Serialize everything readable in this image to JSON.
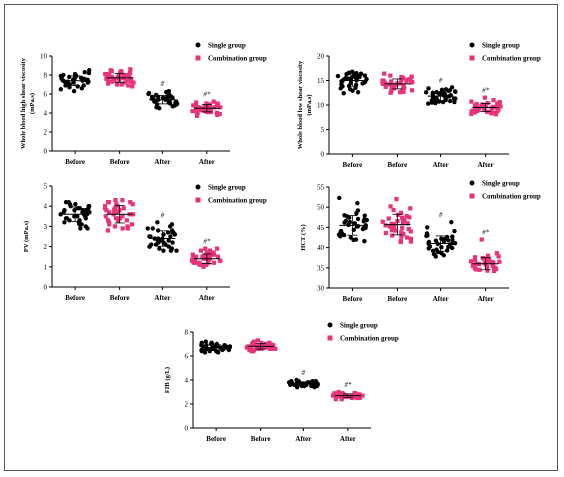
{
  "legend": {
    "single": "Single group",
    "combination": "Combination group"
  },
  "colors": {
    "single": "#000000",
    "combination": "#e8337a"
  },
  "markers": {
    "single": "circle",
    "combination": "square"
  },
  "chart_data": [
    {
      "type": "scatter",
      "ylabel": "Whole blood high shear viscosity (mPa.s)",
      "ylim": [
        0,
        10
      ],
      "yticks": [
        0,
        2,
        4,
        6,
        8,
        10
      ],
      "categories": [
        "Before",
        "Before",
        "After",
        "After"
      ],
      "groups": [
        "single",
        "combination",
        "single",
        "combination"
      ],
      "annotations": [
        "",
        "",
        "#",
        "#*"
      ],
      "series": [
        {
          "name": "Single group",
          "values": [
            7.4,
            7.7,
            7.1,
            7.9,
            6.9,
            7.6,
            8.2,
            7.3,
            7.0,
            7.8,
            6.6,
            7.5,
            8.5,
            7.2,
            6.8,
            7.7,
            7.4,
            8.0,
            6.5,
            7.3,
            7.6,
            7.1,
            8.3,
            6.9,
            7.5,
            7.8,
            7.2,
            6.7,
            8.1,
            7.4,
            7.0,
            7.6,
            6.3,
            7.9,
            7.3,
            7.5
          ]
        },
        {
          "name": "Combination group",
          "values": [
            7.8,
            7.5,
            8.1,
            7.2,
            7.9,
            8.4,
            7.6,
            7.0,
            8.0,
            7.4,
            8.6,
            7.7,
            7.3,
            8.2,
            6.8,
            7.9,
            7.5,
            8.3,
            7.1,
            7.8,
            8.5,
            7.6,
            7.2,
            8.0,
            7.4,
            6.9,
            8.1,
            7.7,
            7.3,
            7.9,
            8.4,
            7.6,
            7.0,
            7.8,
            7.5,
            8.2
          ]
        },
        {
          "name": "Single group",
          "values": [
            5.4,
            5.7,
            5.1,
            5.9,
            5.3,
            6.1,
            4.9,
            5.6,
            5.2,
            5.8,
            4.6,
            5.5,
            6.2,
            5.0,
            5.4,
            5.7,
            4.8,
            5.9,
            5.3,
            5.6,
            4.5,
            5.2,
            6.0,
            5.5,
            5.1,
            5.8,
            4.7,
            5.4,
            5.6,
            5.0,
            6.3,
            5.3,
            5.7,
            4.9,
            5.5,
            5.2
          ]
        },
        {
          "name": "Combination group",
          "values": [
            4.6,
            4.3,
            4.9,
            4.1,
            4.7,
            5.0,
            4.4,
            3.8,
            4.8,
            4.2,
            5.1,
            4.5,
            3.9,
            4.7,
            4.4,
            4.0,
            4.9,
            4.3,
            4.6,
            3.7,
            4.8,
            4.5,
            4.2,
            5.0,
            4.1,
            4.6,
            3.9,
            4.4,
            4.7,
            4.3,
            5.2,
            4.5,
            4.0,
            4.8,
            4.2,
            4.6
          ]
        }
      ],
      "means": [
        7.4,
        7.7,
        5.4,
        4.5
      ]
    },
    {
      "type": "scatter",
      "ylabel": "Whole blood low shear viscosity (mPa.s)",
      "ylim": [
        0,
        20
      ],
      "yticks": [
        0,
        5,
        10,
        15,
        20
      ],
      "categories": [
        "Before",
        "Before",
        "After",
        "After"
      ],
      "groups": [
        "single",
        "combination",
        "single",
        "combination"
      ],
      "annotations": [
        "",
        "",
        "#",
        "#*"
      ],
      "series": [
        {
          "name": "Single group",
          "values": [
            15.2,
            14.6,
            16.1,
            13.8,
            15.7,
            16.5,
            14.2,
            12.9,
            15.9,
            14.8,
            16.8,
            15.3,
            13.5,
            15.0,
            16.3,
            14.4,
            15.6,
            13.2,
            16.0,
            14.9,
            15.4,
            12.6,
            16.6,
            14.1,
            15.8,
            15.1,
            13.9,
            16.2,
            14.7,
            15.5,
            13.4,
            16.4,
            14.5,
            15.2,
            12.4,
            15.8
          ]
        },
        {
          "name": "Combination group",
          "values": [
            14.3,
            13.8,
            15.0,
            12.9,
            14.6,
            15.5,
            13.4,
            14.9,
            12.6,
            14.1,
            16.4,
            13.7,
            14.8,
            13.1,
            15.2,
            14.4,
            12.8,
            15.7,
            13.9,
            14.5,
            15.1,
            13.3,
            14.7,
            12.5,
            16.0,
            14.0,
            13.6,
            15.3,
            14.2,
            13.0,
            15.8,
            14.6,
            13.5,
            14.9,
            12.7,
            14.4
          ]
        },
        {
          "name": "Single group",
          "values": [
            11.8,
            12.6,
            10.9,
            13.4,
            11.3,
            12.1,
            10.4,
            13.1,
            11.6,
            12.9,
            10.7,
            12.3,
            11.0,
            13.6,
            11.9,
            10.5,
            12.7,
            11.4,
            12.2,
            10.8,
            13.2,
            11.1,
            12.5,
            10.6,
            11.7,
            12.8,
            11.2,
            10.3,
            12.4,
            11.5,
            13.0,
            10.9,
            12.0,
            11.3,
            10.6,
            12.6
          ]
        },
        {
          "name": "Combination group",
          "values": [
            9.5,
            8.9,
            10.2,
            8.4,
            9.8,
            10.6,
            9.1,
            8.2,
            10.0,
            9.4,
            11.0,
            8.7,
            9.6,
            10.4,
            8.5,
            9.9,
            9.2,
            10.7,
            8.8,
            9.3,
            10.1,
            8.3,
            9.7,
            10.5,
            9.0,
            8.6,
            11.5,
            9.4,
            10.3,
            8.9,
            9.6,
            8.1,
            10.0,
            9.2,
            9.8,
            8.7
          ]
        }
      ],
      "means": [
        15.0,
        14.3,
        11.8,
        9.5
      ]
    },
    {
      "type": "scatter",
      "ylabel": "PV (mPa.s)",
      "ylim": [
        0,
        5
      ],
      "yticks": [
        0,
        1,
        2,
        3,
        4,
        5
      ],
      "categories": [
        "Before",
        "Before",
        "After",
        "After"
      ],
      "groups": [
        "single",
        "combination",
        "single",
        "combination"
      ],
      "annotations": [
        "",
        "",
        "#",
        "#*"
      ],
      "series": [
        {
          "name": "Single group",
          "values": [
            3.7,
            3.4,
            4.0,
            3.2,
            3.8,
            4.2,
            3.5,
            2.9,
            3.9,
            3.6,
            4.1,
            3.3,
            3.7,
            3.0,
            4.0,
            3.5,
            3.8,
            3.1,
            4.2,
            3.6,
            3.4,
            3.9,
            3.2,
            3.7,
            4.1,
            3.5,
            2.9,
            3.8,
            3.6,
            4.0,
            3.3,
            3.7,
            3.9,
            3.4,
            3.1,
            3.8
          ]
        },
        {
          "name": "Combination group",
          "values": [
            3.6,
            4.0,
            3.3,
            4.2,
            3.1,
            3.8,
            4.3,
            3.5,
            2.8,
            3.9,
            3.4,
            4.1,
            3.0,
            3.7,
            4.2,
            3.3,
            3.9,
            2.9,
            3.6,
            4.0,
            3.2,
            3.8,
            4.3,
            3.5,
            3.1,
            3.7,
            4.1,
            3.4,
            2.9,
            3.8,
            3.6,
            4.2,
            3.3,
            3.9,
            3.0,
            3.7
          ]
        },
        {
          "name": "Single group",
          "values": [
            2.4,
            2.0,
            2.8,
            1.8,
            2.6,
            3.1,
            2.2,
            1.9,
            2.7,
            2.3,
            3.0,
            2.1,
            2.5,
            1.8,
            2.9,
            2.4,
            2.0,
            2.6,
            2.2,
            3.2,
            2.5,
            1.9,
            2.7,
            2.3,
            2.1,
            2.8,
            2.4,
            2.0,
            2.6,
            2.2,
            2.9,
            2.5,
            1.8,
            2.3,
            2.7,
            2.1
          ]
        },
        {
          "name": "Combination group",
          "values": [
            1.4,
            1.6,
            1.2,
            1.8,
            1.3,
            1.5,
            1.1,
            1.7,
            1.4,
            1.9,
            1.2,
            1.5,
            1.3,
            1.6,
            1.0,
            1.4,
            1.7,
            1.2,
            1.5,
            1.8,
            1.3,
            1.4,
            1.1,
            1.6,
            1.5,
            1.2,
            1.9,
            1.3,
            1.4,
            1.6,
            1.2,
            1.5,
            1.7,
            1.3,
            1.4,
            1.1
          ]
        }
      ],
      "means": [
        3.6,
        3.6,
        2.4,
        1.4
      ]
    },
    {
      "type": "scatter",
      "ylabel": "HCT (%)",
      "ylim": [
        30,
        55
      ],
      "yticks": [
        30,
        35,
        40,
        45,
        50,
        55
      ],
      "categories": [
        "Before",
        "Before",
        "After",
        "After"
      ],
      "groups": [
        "single",
        "combination",
        "single",
        "combination"
      ],
      "annotations": [
        "",
        "",
        "#",
        "#*"
      ],
      "series": [
        {
          "name": "Single group",
          "values": [
            45.2,
            43.8,
            47.1,
            42.5,
            46.3,
            48.5,
            44.1,
            41.6,
            46.8,
            45.6,
            52.3,
            43.2,
            47.7,
            44.7,
            42.0,
            46.0,
            49.2,
            45.0,
            43.5,
            47.4,
            44.4,
            41.9,
            46.6,
            45.3,
            51.0,
            43.9,
            47.0,
            44.9,
            42.8,
            46.2,
            48.0,
            45.5,
            43.1,
            47.9,
            44.6,
            46.5
          ]
        },
        {
          "name": "Combination group",
          "values": [
            45.8,
            44.2,
            47.5,
            42.8,
            46.6,
            49.3,
            43.6,
            41.4,
            46.9,
            45.1,
            52.0,
            44.6,
            48.1,
            43.0,
            47.2,
            45.5,
            42.2,
            46.3,
            50.2,
            44.9,
            47.8,
            43.4,
            45.9,
            41.7,
            48.6,
            44.3,
            46.7,
            42.5,
            47.4,
            45.2,
            43.8,
            46.0,
            49.7,
            44.0,
            41.5,
            46.4
          ]
        },
        {
          "name": "Single group",
          "values": [
            41.2,
            40.1,
            42.6,
            39.3,
            41.8,
            43.5,
            40.6,
            38.4,
            42.1,
            41.0,
            46.3,
            39.8,
            42.9,
            40.4,
            38.1,
            41.5,
            44.1,
            40.8,
            39.5,
            42.4,
            41.1,
            37.8,
            42.7,
            40.2,
            45.0,
            39.9,
            41.7,
            38.6,
            42.2,
            40.9,
            39.2,
            41.4,
            43.0,
            40.3,
            38.9,
            41.9
          ]
        },
        {
          "name": "Combination group",
          "values": [
            36.2,
            35.4,
            37.1,
            34.8,
            36.6,
            37.8,
            35.9,
            34.2,
            36.9,
            35.6,
            42.0,
            36.4,
            35.1,
            37.4,
            34.5,
            36.0,
            38.6,
            35.7,
            36.8,
            34.9,
            37.0,
            35.3,
            36.5,
            34.3,
            37.6,
            35.8,
            36.1,
            34.7,
            37.3,
            35.5,
            36.7,
            35.0,
            38.0,
            36.3,
            34.6,
            35.9
          ]
        }
      ],
      "means": [
        45.5,
        45.7,
        41.0,
        36.0
      ]
    },
    {
      "type": "scatter",
      "ylabel": "FIB (g/L)",
      "ylim": [
        0,
        8
      ],
      "yticks": [
        0,
        2,
        4,
        6,
        8
      ],
      "categories": [
        "Before",
        "Before",
        "After",
        "After"
      ],
      "groups": [
        "single",
        "combination",
        "single",
        "combination"
      ],
      "annotations": [
        "",
        "",
        "#",
        "#*"
      ],
      "series": [
        {
          "name": "Single group",
          "values": [
            6.7,
            6.5,
            6.9,
            6.4,
            6.8,
            7.1,
            6.6,
            6.3,
            7.0,
            6.7,
            7.2,
            6.5,
            6.8,
            6.6,
            6.9,
            6.4,
            6.7,
            7.0,
            6.5,
            6.8,
            6.6,
            6.9,
            6.3,
            7.1,
            6.7,
            6.5,
            6.8,
            6.6,
            7.0,
            6.4,
            6.7,
            6.9,
            6.5,
            6.8,
            6.6,
            6.7
          ]
        },
        {
          "name": "Combination group",
          "values": [
            6.8,
            6.6,
            7.0,
            6.5,
            6.9,
            7.2,
            6.7,
            6.4,
            7.1,
            6.8,
            7.3,
            6.6,
            6.9,
            6.7,
            7.0,
            6.5,
            6.8,
            7.1,
            6.6,
            6.9,
            6.7,
            7.0,
            6.4,
            7.2,
            6.8,
            6.6,
            6.9,
            6.7,
            7.1,
            6.5,
            6.8,
            7.0,
            6.6,
            6.9,
            6.7,
            6.8
          ]
        },
        {
          "name": "Single group",
          "values": [
            3.7,
            3.6,
            3.8,
            3.5,
            3.7,
            3.9,
            3.6,
            3.4,
            3.8,
            3.7,
            4.0,
            3.6,
            3.7,
            3.5,
            3.8,
            3.6,
            3.9,
            3.7,
            3.5,
            3.8,
            3.6,
            3.7,
            3.4,
            3.9,
            3.7,
            3.6,
            3.8,
            3.5,
            3.7,
            3.6,
            3.8,
            3.7,
            3.5,
            3.9,
            3.6,
            3.7
          ]
        },
        {
          "name": "Combination group",
          "values": [
            2.7,
            2.6,
            2.8,
            2.5,
            2.7,
            2.9,
            2.6,
            2.4,
            2.8,
            2.7,
            3.0,
            2.6,
            2.7,
            2.5,
            2.8,
            2.6,
            2.9,
            2.7,
            2.5,
            2.8,
            2.6,
            2.7,
            2.4,
            2.9,
            2.7,
            2.6,
            2.8,
            2.5,
            2.7,
            2.6,
            2.8,
            2.7,
            2.5,
            2.9,
            2.6,
            2.7
          ]
        }
      ],
      "means": [
        6.7,
        6.8,
        3.7,
        2.7
      ]
    }
  ]
}
